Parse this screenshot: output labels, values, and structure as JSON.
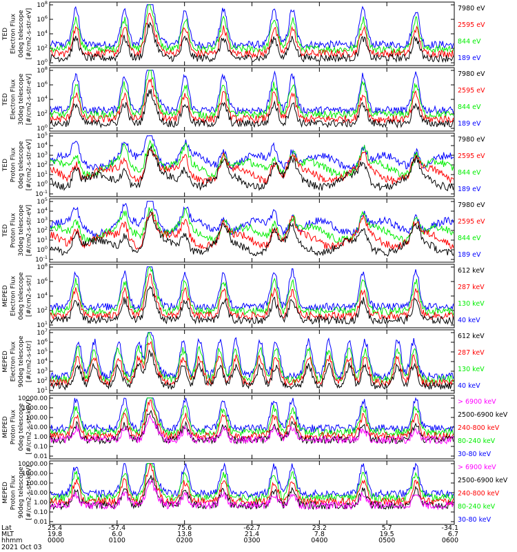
{
  "colors": {
    "blue": "#0000ff",
    "red": "#ff0000",
    "green": "#00ee00",
    "black": "#000000",
    "magenta": "#ff00ff"
  },
  "chart_data": [
    {
      "type": "line",
      "ylabel": [
        "TED",
        "Electron Flux",
        "0deg telescope",
        "[#/cm2-s-str-eV]"
      ],
      "ylim": [
        1,
        100000000
      ],
      "log": true,
      "ytick_labels": [
        "10^0",
        "10^2",
        "10^4",
        "10^6",
        "10^8"
      ],
      "legend": [
        {
          "name": "7980 eV",
          "color": "black"
        },
        {
          "name": "2595 eV",
          "color": "red"
        },
        {
          "name": "844 eV",
          "color": "green"
        },
        {
          "name": "189 eV",
          "color": "blue"
        }
      ]
    },
    {
      "type": "line",
      "ylabel": [
        "TED",
        "Electron Flux",
        "30deg telescope",
        "[#/cm2-s-str-eV]"
      ],
      "ylim": [
        1,
        100000000
      ],
      "log": true,
      "ytick_labels": [
        "10^0",
        "10^2",
        "10^4",
        "10^6",
        "10^8"
      ],
      "legend": [
        {
          "name": "7980 eV",
          "color": "black"
        },
        {
          "name": "2595 eV",
          "color": "red"
        },
        {
          "name": "844 eV",
          "color": "green"
        },
        {
          "name": "189 eV",
          "color": "blue"
        }
      ]
    },
    {
      "type": "line",
      "ylabel": [
        "TED",
        "Proton Flux",
        "0deg telescope",
        "[#/cm2-s-str-eV]"
      ],
      "ylim": [
        0.1,
        100000
      ],
      "log": true,
      "ytick_labels": [
        "10^-1",
        "10^0",
        "10^1",
        "10^2",
        "10^3",
        "10^4",
        "10^5"
      ],
      "legend": [
        {
          "name": "7980 eV",
          "color": "black"
        },
        {
          "name": "2595 eV",
          "color": "red"
        },
        {
          "name": "844 eV",
          "color": "green"
        },
        {
          "name": "189 eV",
          "color": "blue"
        }
      ]
    },
    {
      "type": "line",
      "ylabel": [
        "TED",
        "Proton Flux",
        "30deg telescope",
        "[#/cm2-s-str-eV]"
      ],
      "ylim": [
        0.1,
        100000
      ],
      "log": true,
      "ytick_labels": [
        "10^-1",
        "10^0",
        "10^1",
        "10^2",
        "10^3",
        "10^4",
        "10^5"
      ],
      "legend": [
        {
          "name": "7980 eV",
          "color": "black"
        },
        {
          "name": "2595 eV",
          "color": "red"
        },
        {
          "name": "844 eV",
          "color": "green"
        },
        {
          "name": "189 eV",
          "color": "blue"
        }
      ]
    },
    {
      "type": "line",
      "ylabel": [
        "MEPED",
        "Electron Flux",
        "0deg telescope",
        "[#/cm2-s-str]"
      ],
      "ylim": [
        10,
        100000000
      ],
      "log": true,
      "ytick_labels": [
        "10^1",
        "10^2",
        "10^4",
        "10^6",
        "10^8"
      ],
      "legend": [
        {
          "name": "612 keV",
          "color": "black"
        },
        {
          "name": "287 keV",
          "color": "red"
        },
        {
          "name": "130 keV",
          "color": "green"
        },
        {
          "name": "40 keV",
          "color": "blue"
        }
      ]
    },
    {
      "type": "line",
      "ylabel": [
        "MEPED",
        "Electron Flux",
        "90deg telescope",
        "[#/cm2-s-str]"
      ],
      "ylim": [
        10,
        10000000
      ],
      "log": true,
      "ytick_labels": [
        "10^1",
        "10^2",
        "10^3",
        "10^4",
        "10^5",
        "10^6",
        "10^7"
      ],
      "legend": [
        {
          "name": "612 keV",
          "color": "black"
        },
        {
          "name": "287 keV",
          "color": "red"
        },
        {
          "name": "130 keV",
          "color": "green"
        },
        {
          "name": "40 keV",
          "color": "blue"
        }
      ]
    },
    {
      "type": "line",
      "ylabel": [
        "MEPED",
        "Proton Flux",
        "0deg telescope",
        "[#/cm2-s-str-keV]"
      ],
      "ylim": [
        0.01,
        10000
      ],
      "log": true,
      "ytick_labels": [
        "10000.00",
        "1000.00",
        "100.00",
        "10.00",
        "1.00",
        "0.10",
        "0.01"
      ],
      "legend": [
        {
          "name": "> 6900 keV",
          "color": "magenta"
        },
        {
          "name": "2500-6900 keV",
          "color": "black"
        },
        {
          "name": "240-800 keV",
          "color": "red"
        },
        {
          "name": "80-240 keV",
          "color": "green"
        },
        {
          "name": "30-80 keV",
          "color": "blue"
        }
      ]
    },
    {
      "type": "line",
      "ylabel": [
        "MEPED",
        "Proton Flux",
        "90deg telescope",
        "[#/cm2-s-str-keV]"
      ],
      "ylim": [
        0.01,
        10000
      ],
      "log": true,
      "ytick_labels": [
        "10000.00",
        "1000.00",
        "100.00",
        "10.00",
        "1.00",
        "0.10",
        "0.01"
      ],
      "legend": [
        {
          "name": "> 6900 keV",
          "color": "magenta"
        },
        {
          "name": "2500-6900 keV",
          "color": "black"
        },
        {
          "name": "240-800 keV",
          "color": "red"
        },
        {
          "name": "80-240 keV",
          "color": "green"
        },
        {
          "name": "30-80 keV",
          "color": "blue"
        }
      ]
    }
  ],
  "x_axis": {
    "row_labels": [
      "Lat",
      "MLT",
      "hhmm"
    ],
    "ticks": [
      {
        "lat": "25.4",
        "mlt": "19.8",
        "hhmm": "0000"
      },
      {
        "lat": "-57.4",
        "mlt": "6.0",
        "hhmm": "0100"
      },
      {
        "lat": "75.6",
        "mlt": "13.8",
        "hhmm": "0200"
      },
      {
        "lat": "-62.7",
        "mlt": "21.4",
        "hhmm": "0300"
      },
      {
        "lat": "23.2",
        "mlt": "7.8",
        "hhmm": "0400"
      },
      {
        "lat": "5.7",
        "mlt": "19.5",
        "hhmm": "0500"
      },
      {
        "lat": "-34.1",
        "mlt": "6.7",
        "hhmm": "0600"
      }
    ],
    "date": "2021 Oct 03",
    "time_range_hours": [
      0,
      6
    ]
  }
}
